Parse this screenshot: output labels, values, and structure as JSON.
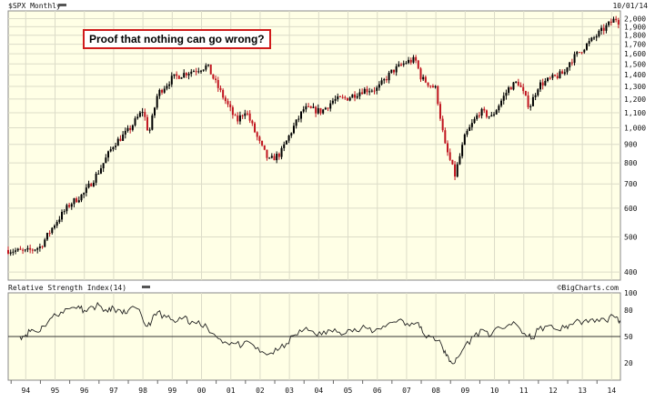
{
  "header": {
    "symbol_label": "$SPX Monthly",
    "date": "10/01/14"
  },
  "annotation": "Proof that nothing can go wrong?",
  "rsi_panel": {
    "title": "Relative Strength Index(14)",
    "source": "©BigCharts.com"
  },
  "colors": {
    "background": "#ffffe6",
    "up": "#000000",
    "down": "#c0141e",
    "grid": "#dcdcc8",
    "annotation_border": "#d01b1b"
  },
  "chart_data": [
    {
      "type": "candlestick",
      "title": "$SPX Monthly",
      "scale": "log",
      "ylim": [
        380,
        2100
      ],
      "yticks": [
        400,
        500,
        600,
        700,
        800,
        900,
        1000,
        1100,
        1200,
        1300,
        1400,
        1500,
        1600,
        1700,
        1800,
        1900,
        2000
      ],
      "ytick_labels": [
        "400",
        "500",
        "600",
        "700",
        "800",
        "900",
        "1,000",
        "1,100",
        "1,200",
        "1,300",
        "1,400",
        "1,500",
        "1,600",
        "1,700",
        "1,800",
        "1,900",
        "2,000"
      ],
      "x_range": [
        1993.9,
        2014.8
      ],
      "xticks": [
        1994,
        1995,
        1996,
        1997,
        1998,
        1999,
        2000,
        2001,
        2002,
        2003,
        2004,
        2005,
        2006,
        2007,
        2008,
        2009,
        2010,
        2011,
        2012,
        2013,
        2014
      ],
      "xtick_labels": [
        "94",
        "95",
        "96",
        "97",
        "98",
        "99",
        "00",
        "01",
        "02",
        "03",
        "04",
        "05",
        "06",
        "07",
        "08",
        "09",
        "10",
        "11",
        "12",
        "13",
        "14"
      ],
      "close_anchors": [
        [
          1993.9,
          460
        ],
        [
          1994.5,
          455
        ],
        [
          1995.0,
          470
        ],
        [
          1995.5,
          545
        ],
        [
          1996.0,
          615
        ],
        [
          1996.5,
          660
        ],
        [
          1997.0,
          760
        ],
        [
          1997.5,
          900
        ],
        [
          1998.0,
          980
        ],
        [
          1998.5,
          1120
        ],
        [
          1998.7,
          960
        ],
        [
          1999.0,
          1240
        ],
        [
          1999.5,
          1370
        ],
        [
          2000.0,
          1420
        ],
        [
          2000.7,
          1480
        ],
        [
          2001.0,
          1320
        ],
        [
          2001.7,
          1040
        ],
        [
          2002.0,
          1120
        ],
        [
          2002.5,
          900
        ],
        [
          2002.8,
          810
        ],
        [
          2003.2,
          850
        ],
        [
          2003.6,
          990
        ],
        [
          2004.0,
          1130
        ],
        [
          2004.6,
          1110
        ],
        [
          2005.0,
          1190
        ],
        [
          2005.5,
          1210
        ],
        [
          2006.0,
          1270
        ],
        [
          2006.5,
          1280
        ],
        [
          2007.0,
          1430
        ],
        [
          2007.5,
          1520
        ],
        [
          2007.8,
          1540
        ],
        [
          2008.0,
          1370
        ],
        [
          2008.5,
          1280
        ],
        [
          2008.8,
          900
        ],
        [
          2009.15,
          740
        ],
        [
          2009.5,
          950
        ],
        [
          2010.0,
          1110
        ],
        [
          2010.4,
          1070
        ],
        [
          2011.0,
          1290
        ],
        [
          2011.3,
          1340
        ],
        [
          2011.7,
          1140
        ],
        [
          2012.0,
          1310
        ],
        [
          2012.4,
          1360
        ],
        [
          2012.9,
          1420
        ],
        [
          2013.0,
          1500
        ],
        [
          2013.5,
          1650
        ],
        [
          2014.0,
          1800
        ],
        [
          2014.5,
          1960
        ],
        [
          2014.65,
          2000
        ],
        [
          2014.75,
          1960
        ]
      ]
    },
    {
      "type": "line",
      "title": "Relative Strength Index(14)",
      "ylim": [
        0,
        100
      ],
      "yticks": [
        20,
        50,
        80,
        100
      ],
      "ytick_labels": [
        "20",
        "50",
        "80",
        "100"
      ],
      "reference_line": 50,
      "x_range": [
        1994.3,
        2014.8
      ],
      "points": [
        [
          1994.3,
          50
        ],
        [
          1994.5,
          52
        ],
        [
          1994.7,
          58
        ],
        [
          1994.9,
          55
        ],
        [
          1995.1,
          62
        ],
        [
          1995.4,
          72
        ],
        [
          1995.7,
          78
        ],
        [
          1996.0,
          82
        ],
        [
          1996.3,
          85
        ],
        [
          1996.5,
          80
        ],
        [
          1996.8,
          84
        ],
        [
          1997.0,
          86
        ],
        [
          1997.3,
          78
        ],
        [
          1997.5,
          83
        ],
        [
          1997.8,
          76
        ],
        [
          1998.0,
          80
        ],
        [
          1998.3,
          82
        ],
        [
          1998.6,
          62
        ],
        [
          1998.8,
          68
        ],
        [
          1999.0,
          78
        ],
        [
          1999.3,
          72
        ],
        [
          1999.6,
          66
        ],
        [
          1999.9,
          72
        ],
        [
          2000.1,
          64
        ],
        [
          2000.4,
          68
        ],
        [
          2000.7,
          60
        ],
        [
          2001.0,
          50
        ],
        [
          2001.3,
          44
        ],
        [
          2001.6,
          42
        ],
        [
          2001.9,
          40
        ],
        [
          2002.2,
          42
        ],
        [
          2002.5,
          32
        ],
        [
          2002.8,
          30
        ],
        [
          2003.1,
          34
        ],
        [
          2003.4,
          42
        ],
        [
          2003.7,
          52
        ],
        [
          2004.0,
          58
        ],
        [
          2004.3,
          56
        ],
        [
          2004.6,
          52
        ],
        [
          2004.9,
          57
        ],
        [
          2005.2,
          55
        ],
        [
          2005.5,
          58
        ],
        [
          2005.8,
          56
        ],
        [
          2006.1,
          60
        ],
        [
          2006.4,
          56
        ],
        [
          2006.7,
          62
        ],
        [
          2007.0,
          66
        ],
        [
          2007.3,
          70
        ],
        [
          2007.6,
          62
        ],
        [
          2007.9,
          66
        ],
        [
          2008.1,
          52
        ],
        [
          2008.4,
          50
        ],
        [
          2008.7,
          40
        ],
        [
          2008.85,
          28
        ],
        [
          2009.0,
          22
        ],
        [
          2009.15,
          20
        ],
        [
          2009.3,
          28
        ],
        [
          2009.5,
          40
        ],
        [
          2009.8,
          50
        ],
        [
          2010.1,
          58
        ],
        [
          2010.4,
          52
        ],
        [
          2010.7,
          60
        ],
        [
          2011.0,
          64
        ],
        [
          2011.3,
          62
        ],
        [
          2011.6,
          50
        ],
        [
          2011.8,
          48
        ],
        [
          2012.0,
          58
        ],
        [
          2012.3,
          62
        ],
        [
          2012.6,
          58
        ],
        [
          2012.9,
          60
        ],
        [
          2013.1,
          64
        ],
        [
          2013.4,
          68
        ],
        [
          2013.7,
          66
        ],
        [
          2014.0,
          70
        ],
        [
          2014.3,
          68
        ],
        [
          2014.55,
          74
        ],
        [
          2014.7,
          72
        ],
        [
          2014.8,
          66
        ]
      ]
    }
  ]
}
